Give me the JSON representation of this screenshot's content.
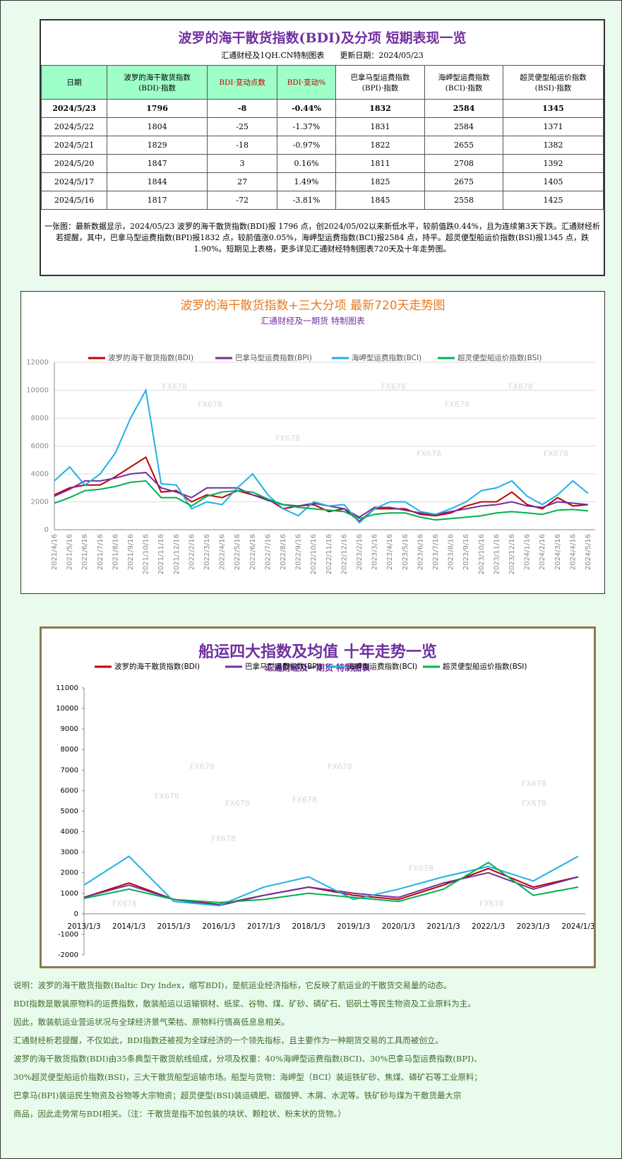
{
  "table": {
    "title": "波罗的海干散货指数(BDI)及分项 短期表现一览",
    "subtitle": "汇通财经及1QH.CN特制图表　　更新日期：2024/05/23",
    "headers": [
      "日期",
      "波罗的海干散货指数\n(BDI)·指数",
      "BDI·变动点数",
      "BDI·变动%",
      "巴拿马型运费指数\n(BPI)·指数",
      "海岬型运费指数\n(BCI)·指数",
      "超灵便型船运价指数\n(BSI)·指数"
    ],
    "rows": [
      [
        "2024/5/23",
        1796,
        -8,
        "-0.44%",
        1832,
        2584,
        1345
      ],
      [
        "2024/5/22",
        1804,
        -25,
        "-1.37%",
        1831,
        2584,
        1371
      ],
      [
        "2024/5/21",
        1829,
        -18,
        "-0.97%",
        1822,
        2655,
        1382
      ],
      [
        "2024/5/20",
        1847,
        3,
        "0.16%",
        1811,
        2708,
        1392
      ],
      [
        "2024/5/17",
        1844,
        27,
        "1.49%",
        1825,
        2675,
        1405
      ],
      [
        "2024/5/16",
        1817,
        -72,
        "-3.81%",
        1845,
        2558,
        1425
      ]
    ],
    "note": "一张图：最新数据显示，2024/05/23 波罗的海干散货指数(BDI)报 1796 点，创2024/05/02以来新低水平，较前值跌0.44%，且为连续第3天下跌。汇通财经析若提醒，其中，巴拿马型运费指数(BPI)报1832 点，较前值涨0.05%，海岬型运费指数(BCI)报2584 点，持平。超灵便型船运价指数(BSI)报1345 点，跌1.90%。短期见上表格，更多详见汇通财经特制图表720天及十年走势图。"
  },
  "chart_data": [
    {
      "type": "line",
      "title": "波罗的海干散货指数+三大分项  最新720天走势图",
      "subtitle": "汇通财经及一期货  特制图表",
      "watermark": "FX678",
      "categories": [
        "2021/4/16",
        "2021/5/16",
        "2021/6/16",
        "2021/7/16",
        "2021/8/16",
        "2021/9/16",
        "2021/10/16",
        "2021/11/16",
        "2021/12/16",
        "2022/2/16",
        "2022/3/16",
        "2022/4/16",
        "2022/5/16",
        "2022/6/16",
        "2022/7/16",
        "2022/8/16",
        "2022/9/16",
        "2022/10/16",
        "2022/11/16",
        "2022/12/16",
        "2023/2/16",
        "2023/3/16",
        "2023/4/16",
        "2023/5/16",
        "2023/6/16",
        "2023/7/16",
        "2023/8/16",
        "2023/9/16",
        "2023/10/16",
        "2023/11/16",
        "2023/12/16",
        "2024/1/16",
        "2024/2/16",
        "2024/3/16",
        "2024/4/16",
        "2024/5/16"
      ],
      "series": [
        {
          "name": "波罗的海干散货指数(BDI)",
          "color": "#c00000",
          "values": [
            2500,
            3000,
            3200,
            3200,
            3800,
            4500,
            5200,
            2700,
            2800,
            2000,
            2500,
            2300,
            2800,
            2500,
            2200,
            1500,
            1700,
            1800,
            1300,
            1500,
            600,
            1500,
            1500,
            1500,
            1100,
            1000,
            1200,
            1700,
            2000,
            2000,
            2700,
            1800,
            1500,
            2300,
            1700,
            1800
          ]
        },
        {
          "name": "巴拿马型运费指数(BPI)",
          "color": "#7030a0",
          "values": [
            2400,
            2900,
            3500,
            3500,
            3700,
            4000,
            4100,
            3000,
            2700,
            2300,
            3000,
            3000,
            3000,
            2500,
            2100,
            1800,
            1700,
            1900,
            1700,
            1500,
            900,
            1600,
            1600,
            1400,
            1200,
            1100,
            1300,
            1500,
            1700,
            1800,
            2000,
            1700,
            1600,
            2000,
            1900,
            1800
          ]
        },
        {
          "name": "海岬型运费指数(BCI)",
          "color": "#1fb0e8",
          "values": [
            3500,
            4500,
            3200,
            4000,
            5500,
            8000,
            10000,
            3300,
            3200,
            1500,
            2000,
            1800,
            3000,
            4000,
            2500,
            1500,
            1000,
            2000,
            1700,
            1800,
            500,
            1500,
            2000,
            2000,
            1300,
            1100,
            1500,
            2000,
            2800,
            3000,
            3500,
            2400,
            1800,
            2500,
            3500,
            2600
          ]
        },
        {
          "name": "超灵便型船运价指数(BSI)",
          "color": "#00b050",
          "values": [
            1900,
            2300,
            2800,
            2900,
            3100,
            3400,
            3500,
            2300,
            2300,
            1700,
            2400,
            2700,
            2800,
            2700,
            2200,
            1800,
            1600,
            1500,
            1400,
            1300,
            800,
            1100,
            1200,
            1200,
            900,
            700,
            800,
            900,
            1000,
            1200,
            1300,
            1200,
            1100,
            1400,
            1450,
            1350
          ]
        }
      ],
      "ylim": [
        0,
        12000
      ],
      "yticks": [
        0,
        2000,
        4000,
        6000,
        8000,
        10000,
        12000
      ],
      "grid": true
    },
    {
      "type": "line",
      "title": "船运四大指数及均值 十年走势一览",
      "subtitle": "汇通财经及一期货 特制图表",
      "watermark": "FX678",
      "categories": [
        "2013/1/3",
        "2014/1/3",
        "2015/1/3",
        "2016/1/3",
        "2017/1/3",
        "2018/1/3",
        "2019/1/3",
        "2020/1/3",
        "2021/1/3",
        "2022/1/3",
        "2023/1/3",
        "2024/1/3"
      ],
      "series": [
        {
          "name": "波罗的海干散货指数(BDI)",
          "color": "#c00000",
          "values": [
            800,
            1500,
            700,
            450,
            900,
            1300,
            900,
            700,
            1400,
            2200,
            1300,
            1800
          ]
        },
        {
          "name": "巴拿马型运费指数(BPI)",
          "color": "#7030a0",
          "values": [
            800,
            1400,
            700,
            400,
            900,
            1300,
            1000,
            800,
            1500,
            2000,
            1200,
            1800
          ]
        },
        {
          "name": "海岬型运费指数(BCI)",
          "color": "#1fb0e8",
          "values": [
            1400,
            2800,
            600,
            400,
            1300,
            1800,
            700,
            1200,
            1800,
            2300,
            1600,
            2800
          ]
        },
        {
          "name": "超灵便型船运价指数(BSI)",
          "color": "#00b050",
          "values": [
            750,
            1200,
            700,
            550,
            700,
            1000,
            800,
            600,
            1200,
            2500,
            900,
            1300
          ]
        }
      ],
      "ylim": [
        -2000,
        11000
      ],
      "yticks": [
        -2000,
        -1000,
        0,
        1000,
        2000,
        3000,
        4000,
        5000,
        6000,
        7000,
        8000,
        9000,
        10000,
        11000
      ],
      "grid": false
    }
  ],
  "notes": [
    "说明：波罗的海干散货指数(Baltic Dry Index，缩写BDI)，是航运业经济指标，它反映了航运业的干散货交易量的动态。",
    "BDI指数是散装原物料的运费指数，散装船运以运输钢材、纸浆、谷物、煤、矿砂、磷矿石、铝矾土等民生物资及工业原料为主。",
    "因此，散装航运业营运状况与全球经济景气荣枯、原物料行情高低息息相关。",
    "汇通财经析若提醒，不仅如此，BDI指数还被视为全球经济的一个领先指标，且主要作为一种期货交易的工具而被创立。",
    "波罗的海干散货指数(BDI)由35条典型干散货航线组成，分项及权重：40%海岬型运费指数(BCI)、30%巴拿马型运费指数(BPI)、",
    "30%超灵便型船运价指数(BSI)，三大干散货船型运输市场。船型与货物：海岬型（BCI）装运铁矿砂、焦煤、磷矿石等工业原料；",
    "巴拿马(BPI)装运民生物资及谷物等大宗物资；超灵便型(BSI)装运磷肥、碳酸钾、木屑、水泥等。铁矿砂与煤为干散货最大宗",
    "商品，因此走势常与BDI相关。（注：干散货是指不加包装的块状、颗粒状、粉末状的货物。）"
  ]
}
